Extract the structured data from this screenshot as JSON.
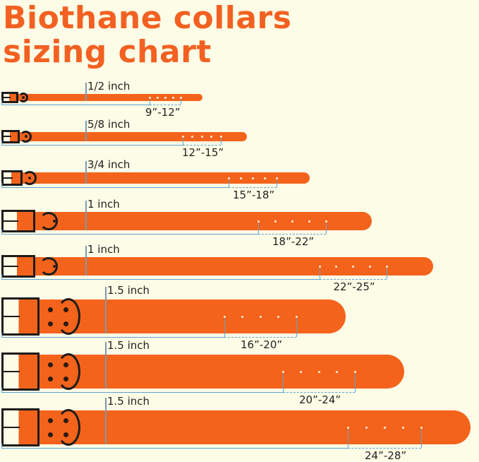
{
  "title": {
    "line1": "Biothane collars",
    "line2": "sizing chart"
  },
  "colors": {
    "title": "#f26122",
    "strap": "#f4631b",
    "background": "#fdfce6",
    "guide_lines": "#5aa3cf"
  },
  "collars": [
    {
      "width": "1/2 inch",
      "size": "9”-12”"
    },
    {
      "width": "5/8 inch",
      "size": "12”-15”"
    },
    {
      "width": "3/4 inch",
      "size": "15”-18”"
    },
    {
      "width": "1 inch",
      "size": "18”-22”"
    },
    {
      "width": "1 inch",
      "size": "22”-25”"
    },
    {
      "width": "1.5 inch",
      "size": "16”-20”"
    },
    {
      "width": "1.5 inch",
      "size": "20”-24”"
    },
    {
      "width": "1.5 inch",
      "size": "24”-28”"
    }
  ]
}
